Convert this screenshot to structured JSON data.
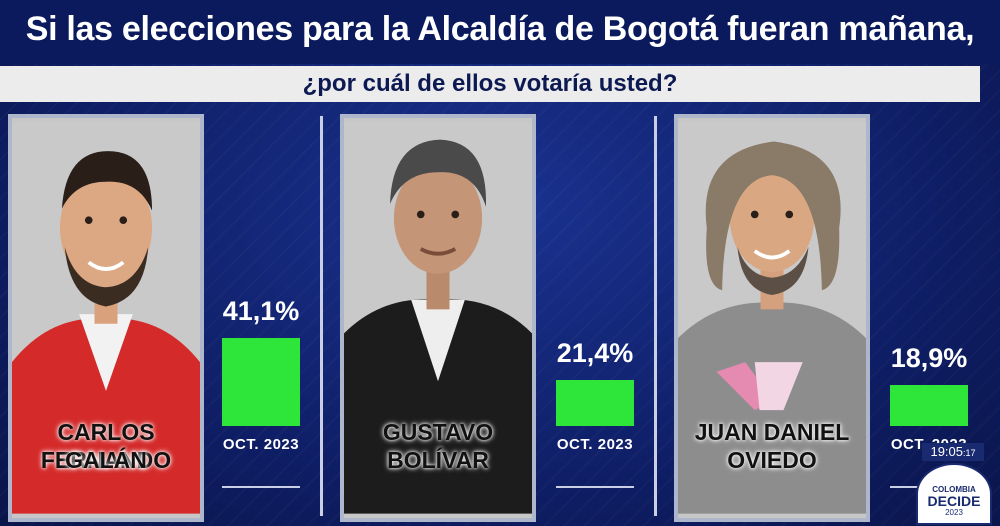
{
  "header": {
    "title": "Si las elecciones para la Alcaldía de Bogotá fueran mañana,",
    "subtitle": "¿por cuál de ellos votaría usted?"
  },
  "chart_data": {
    "type": "bar",
    "categories": [
      "CARLOS FERNANDO GALÁN",
      "GUSTAVO BOLÍVAR",
      "JUAN DANIEL OVIEDO"
    ],
    "values": [
      41.1,
      21.4,
      18.9
    ],
    "value_labels": [
      "41,1%",
      "21,4%",
      "18,9%"
    ],
    "period_label": "OCT. 2023",
    "bar_color": "#2ee63a"
  },
  "candidates": [
    {
      "name_line1": "CARLOS FERNANDO",
      "name_line2": "GALÁN",
      "jacket_color": "#d42a2a"
    },
    {
      "name_line1": "GUSTAVO",
      "name_line2": "BOLÍVAR",
      "jacket_color": "#1c1c1c"
    },
    {
      "name_line1": "JUAN DANIEL",
      "name_line2": "OVIEDO",
      "jacket_color": "#8d8d8d"
    }
  ],
  "broadcast": {
    "clock": "19:05",
    "clock_seconds": ":17",
    "logo_line1": "COLOMBIA",
    "logo_line2": "DECIDE",
    "logo_line3": "2023"
  }
}
